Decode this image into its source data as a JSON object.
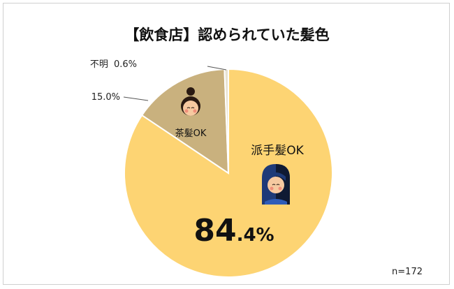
{
  "chart_data": {
    "type": "pie",
    "title": "【飲食店】認められていた髪色",
    "note": "n=172",
    "slices": [
      {
        "label": "派手髪OK",
        "value": 84.4,
        "value_text_big": "84",
        "value_text_small": ".4%",
        "color": "#FDD473"
      },
      {
        "label": "茶髪OK",
        "value": 15.0,
        "value_text": "15.0%",
        "color": "#C9B17E"
      },
      {
        "label": "不明",
        "value": 0.6,
        "value_text": "0.6%",
        "color": "#E8E2D0"
      }
    ]
  },
  "colors": {
    "slice_border": "#ffffff",
    "leader_line": "#555555",
    "frame": "#cfcfcf"
  },
  "icons": [
    "bun-hair-woman-icon",
    "bicolor-hair-person-icon"
  ]
}
